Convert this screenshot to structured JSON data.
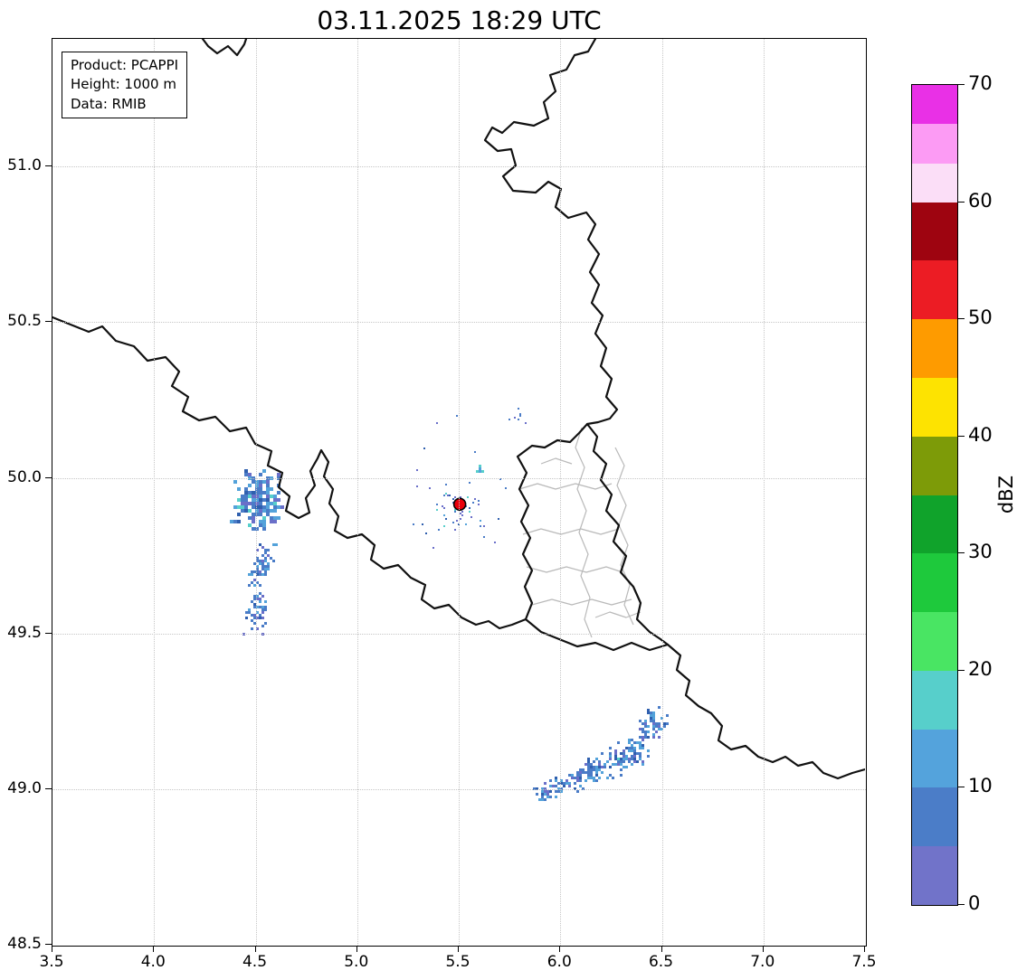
{
  "title": "03.11.2025 18:29 UTC",
  "info_box": {
    "lines": [
      "Product: PCAPPI",
      "Height: 1000 m",
      "Data: RMIB"
    ]
  },
  "axes": {
    "x": {
      "min": 3.5,
      "max": 7.5,
      "ticks": [
        3.5,
        4.0,
        4.5,
        5.0,
        5.5,
        6.0,
        6.5,
        7.0,
        7.5
      ]
    },
    "y": {
      "min": 48.5,
      "max": 51.41,
      "ticks": [
        48.5,
        49.0,
        49.5,
        50.0,
        50.5,
        51.0
      ]
    }
  },
  "colorbar": {
    "label": "dBZ",
    "min": 0,
    "max": 70,
    "ticks": [
      0,
      10,
      20,
      30,
      40,
      50,
      60,
      70
    ],
    "segments": [
      {
        "from": 0,
        "to": 5,
        "color": "#7173c9"
      },
      {
        "from": 5,
        "to": 10,
        "color": "#4b7dc8"
      },
      {
        "from": 10,
        "to": 15,
        "color": "#54a3dc"
      },
      {
        "from": 15,
        "to": 20,
        "color": "#57cfcb"
      },
      {
        "from": 20,
        "to": 25,
        "color": "#49e563"
      },
      {
        "from": 25,
        "to": 30,
        "color": "#1ec93c"
      },
      {
        "from": 30,
        "to": 35,
        "color": "#10a32b"
      },
      {
        "from": 35,
        "to": 40,
        "color": "#7d9b08"
      },
      {
        "from": 40,
        "to": 45,
        "color": "#fde301"
      },
      {
        "from": 45,
        "to": 50,
        "color": "#fe9b00"
      },
      {
        "from": 50,
        "to": 55,
        "color": "#ec1c24"
      },
      {
        "from": 55,
        "to": 60,
        "color": "#9e0410"
      },
      {
        "from": 60,
        "to": 63.3,
        "color": "#fbdef7"
      },
      {
        "from": 63.3,
        "to": 66.7,
        "color": "#fc9bf4"
      },
      {
        "from": 66.7,
        "to": 70,
        "color": "#e930e6"
      }
    ]
  },
  "radar_site": {
    "lon": 5.505,
    "lat": 49.915,
    "color": "#e8000b",
    "edge": "#000000",
    "radius": 6.5
  },
  "echo_clusters": [
    {
      "name": "west-main-cluster",
      "lon": 4.5,
      "lat": 49.932,
      "dlon": 0.135,
      "dlat": 0.095,
      "n": 175,
      "cell": 4,
      "seed": 7,
      "tilt": 0,
      "tiltx": 0,
      "palette": [
        [
          "#4a7cc7",
          0.42
        ],
        [
          "#53a2da",
          0.25
        ],
        [
          "#6a6fc9",
          0.16
        ],
        [
          "#57cfcb",
          0.09
        ],
        [
          "#2f5fae",
          0.08
        ]
      ]
    },
    {
      "name": "west-streak-upper",
      "lon": 4.525,
      "lat": 49.722,
      "dlon": 0.055,
      "dlat": 0.085,
      "n": 55,
      "cell": 3,
      "seed": 11,
      "tilt": 0,
      "tiltx": -0.25,
      "palette": [
        [
          "#4a7cc7",
          0.5
        ],
        [
          "#53a2da",
          0.25
        ],
        [
          "#6a6fc9",
          0.15
        ],
        [
          "#2f5fae",
          0.1
        ]
      ]
    },
    {
      "name": "west-streak-lower",
      "lon": 4.5,
      "lat": 49.568,
      "dlon": 0.06,
      "dlat": 0.075,
      "n": 48,
      "cell": 3,
      "seed": 13,
      "tilt": 0,
      "tiltx": -0.25,
      "palette": [
        [
          "#4a7cc7",
          0.5
        ],
        [
          "#53a2da",
          0.25
        ],
        [
          "#6a6fc9",
          0.15
        ],
        [
          "#2f5fae",
          0.1
        ]
      ]
    },
    {
      "name": "southeast-band-1",
      "lon": 5.955,
      "lat": 49.005,
      "dlon": 0.1,
      "dlat": 0.04,
      "n": 55,
      "cell": 3,
      "seed": 21,
      "tilt": -0.45,
      "tiltx": 0,
      "palette": [
        [
          "#4a7cc7",
          0.45
        ],
        [
          "#53a2da",
          0.25
        ],
        [
          "#6a6fc9",
          0.18
        ],
        [
          "#2f5fae",
          0.12
        ]
      ]
    },
    {
      "name": "southeast-band-2",
      "lon": 6.14,
      "lat": 49.06,
      "dlon": 0.11,
      "dlat": 0.05,
      "n": 85,
      "cell": 3,
      "seed": 22,
      "tilt": -0.5,
      "tiltx": 0,
      "palette": [
        [
          "#4a7cc7",
          0.45
        ],
        [
          "#53a2da",
          0.25
        ],
        [
          "#6a6fc9",
          0.18
        ],
        [
          "#2f5fae",
          0.12
        ]
      ]
    },
    {
      "name": "southeast-band-3",
      "lon": 6.32,
      "lat": 49.105,
      "dlon": 0.12,
      "dlat": 0.06,
      "n": 100,
      "cell": 3,
      "seed": 23,
      "tilt": -0.45,
      "tiltx": 0,
      "palette": [
        [
          "#4a7cc7",
          0.42
        ],
        [
          "#53a2da",
          0.28
        ],
        [
          "#6a6fc9",
          0.15
        ],
        [
          "#57cfcb",
          0.05
        ],
        [
          "#2f5fae",
          0.1
        ]
      ]
    },
    {
      "name": "southeast-band-4",
      "lon": 6.46,
      "lat": 49.22,
      "dlon": 0.08,
      "dlat": 0.06,
      "n": 60,
      "cell": 3,
      "seed": 24,
      "tilt": -0.4,
      "tiltx": 0,
      "palette": [
        [
          "#4a7cc7",
          0.45
        ],
        [
          "#53a2da",
          0.25
        ],
        [
          "#6a6fc9",
          0.18
        ],
        [
          "#2f5fae",
          0.12
        ]
      ]
    },
    {
      "name": "clutter-near-radar",
      "lon": 5.505,
      "lat": 49.915,
      "dlon": 0.14,
      "dlat": 0.09,
      "n": 40,
      "cell": 2,
      "seed": 31,
      "tilt": 0,
      "tiltx": 0,
      "palette": [
        [
          "#4a7cc7",
          0.3
        ],
        [
          "#6a6fc9",
          0.25
        ],
        [
          "#57cfcb",
          0.2
        ],
        [
          "#2f5fae",
          0.15
        ],
        [
          "#53a2da",
          0.1
        ]
      ]
    },
    {
      "name": "sparse-specks",
      "lon": 5.52,
      "lat": 49.95,
      "dlon": 0.38,
      "dlat": 0.28,
      "n": 22,
      "cell": 2,
      "seed": 32,
      "tilt": 0,
      "tiltx": 0,
      "palette": [
        [
          "#4a7cc7",
          0.4
        ],
        [
          "#6a6fc9",
          0.3
        ],
        [
          "#2f5fae",
          0.3
        ]
      ]
    },
    {
      "name": "northeast-streak",
      "lon": 5.59,
      "lat": 50.03,
      "dlon": 0.035,
      "dlat": 0.02,
      "n": 10,
      "cell": 3,
      "seed": 33,
      "tilt": 0,
      "tiltx": -0.3,
      "palette": [
        [
          "#57cfcb",
          0.6
        ],
        [
          "#53a2da",
          0.4
        ]
      ]
    },
    {
      "name": "northeast-specks",
      "lon": 5.78,
      "lat": 50.19,
      "dlon": 0.05,
      "dlat": 0.04,
      "n": 7,
      "cell": 2,
      "seed": 34,
      "tilt": 0,
      "tiltx": 0,
      "palette": [
        [
          "#4a7cc7",
          0.5
        ],
        [
          "#6a6fc9",
          0.5
        ]
      ]
    }
  ],
  "chart_data": {
    "type": "heatmap",
    "title": "03.11.2025 18:29 UTC",
    "xlabel": "",
    "ylabel": "",
    "xlim": [
      3.5,
      7.5
    ],
    "ylim": [
      48.5,
      51.41
    ],
    "x_ticks": [
      3.5,
      4.0,
      4.5,
      5.0,
      5.5,
      6.0,
      6.5,
      7.0,
      7.5
    ],
    "y_ticks": [
      48.5,
      49.0,
      49.5,
      50.0,
      50.5,
      51.0
    ],
    "grid": true,
    "colorbar": {
      "label": "dBZ",
      "range": [
        0,
        70
      ],
      "tick_step": 10
    },
    "annotations": [
      "Product: PCAPPI",
      "Height: 1000 m",
      "Data: RMIB"
    ],
    "radar_site": {
      "lon": 5.505,
      "lat": 49.915,
      "marker": "red-dot-black-edge"
    },
    "echo_regions": [
      {
        "name": "cluster-west",
        "lon_range": [
          4.38,
          4.62
        ],
        "lat_range": [
          49.82,
          50.02
        ],
        "dbz_range": [
          0,
          15
        ]
      },
      {
        "name": "streaks-west-south",
        "lon_range": [
          4.44,
          4.58
        ],
        "lat_range": [
          49.5,
          49.76
        ],
        "dbz_range": [
          0,
          12
        ]
      },
      {
        "name": "band-southeast",
        "lon_range": [
          5.9,
          6.62
        ],
        "lat_range": [
          48.97,
          49.3
        ],
        "dbz_range": [
          0,
          15
        ]
      },
      {
        "name": "clutter-near-radar",
        "lon_range": [
          5.3,
          5.7
        ],
        "lat_range": [
          49.8,
          50.2
        ],
        "dbz_range": [
          0,
          10
        ]
      }
    ],
    "map_layers": [
      "national-borders-black",
      "luxembourg-districts-gray"
    ]
  }
}
